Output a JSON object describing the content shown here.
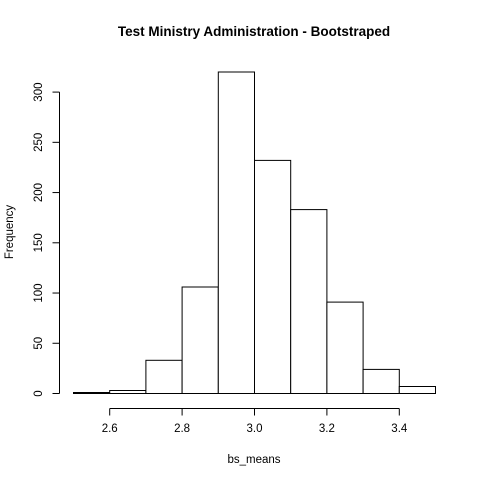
{
  "chart_data": {
    "type": "bar",
    "subtype": "histogram",
    "title": "Test Ministry Administration - Bootstraped",
    "xlabel": "bs_means",
    "ylabel": "Frequency",
    "bins": [
      {
        "start": 2.5,
        "end": 2.6,
        "value": 1
      },
      {
        "start": 2.6,
        "end": 2.7,
        "value": 3
      },
      {
        "start": 2.7,
        "end": 2.8,
        "value": 33
      },
      {
        "start": 2.8,
        "end": 2.9,
        "value": 106
      },
      {
        "start": 2.9,
        "end": 3.0,
        "value": 320
      },
      {
        "start": 3.0,
        "end": 3.1,
        "value": 232
      },
      {
        "start": 3.1,
        "end": 3.2,
        "value": 183
      },
      {
        "start": 3.2,
        "end": 3.3,
        "value": 91
      },
      {
        "start": 3.3,
        "end": 3.4,
        "value": 24
      },
      {
        "start": 3.4,
        "end": 3.5,
        "value": 7
      }
    ],
    "xticks": [
      2.6,
      2.8,
      3.0,
      3.2,
      3.4
    ],
    "xtick_labels": [
      "2.6",
      "2.8",
      "3.0",
      "3.2",
      "3.4"
    ],
    "yticks": [
      0,
      50,
      100,
      150,
      200,
      250,
      300
    ],
    "ytick_labels": [
      "0",
      "50",
      "100",
      "150",
      "200",
      "250",
      "300"
    ],
    "xlim": [
      2.5,
      3.5
    ],
    "ylim": [
      0,
      320
    ],
    "grid": false
  }
}
